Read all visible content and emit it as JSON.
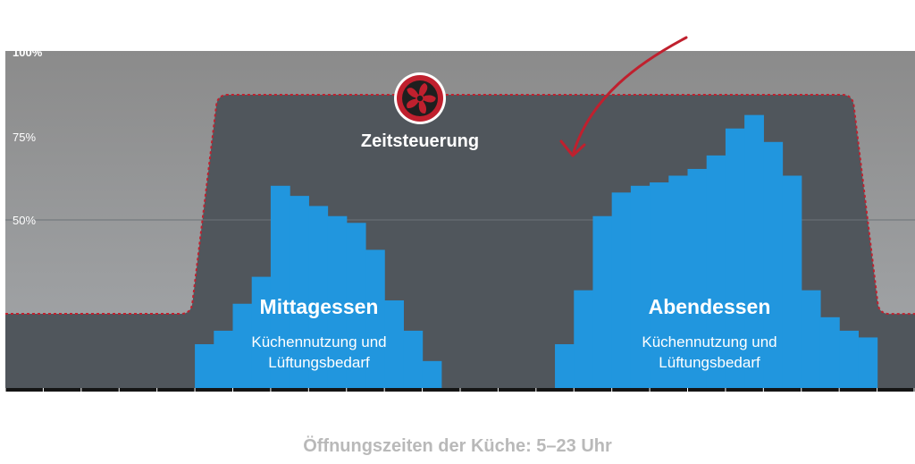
{
  "chart_data": {
    "type": "bar",
    "ylim": [
      0,
      100
    ],
    "yticks": [
      {
        "value": 50,
        "label": "50%"
      },
      {
        "value": 75,
        "label": "75%"
      },
      {
        "value": 100,
        "label": "100%"
      }
    ],
    "slots": 48,
    "series": [
      {
        "values": [
          0,
          0,
          0,
          0,
          0,
          0,
          0,
          0,
          0,
          0,
          13,
          17,
          25,
          33,
          60,
          57,
          54,
          51,
          49,
          41,
          26,
          17,
          8,
          0,
          0,
          0,
          0,
          0,
          0,
          13,
          29,
          51,
          58,
          60,
          61,
          63,
          65,
          69,
          77,
          81,
          73,
          63,
          29,
          21,
          17,
          15,
          0,
          0
        ]
      }
    ],
    "ventilation_profile": [
      {
        "x": 0,
        "y": 22
      },
      {
        "x": 9.8,
        "y": 22
      },
      {
        "x": 11.2,
        "y": 87
      },
      {
        "x": 44.7,
        "y": 87
      },
      {
        "x": 46.1,
        "y": 22
      },
      {
        "x": 48,
        "y": 22
      }
    ],
    "annotations": {
      "lunch_title": "Mittagessen",
      "lunch_sub_1": "Küchennutzung und",
      "lunch_sub_2": "Lüftungsbedarf",
      "dinner_title": "Abendessen",
      "dinner_sub_1": "Küchennutzung und",
      "dinner_sub_2": "Lüftungsbedarf",
      "schedule_label": "Zeitsteuerung",
      "fan_icon": "fan-icon",
      "arrow_icon": "curved-arrow-icon"
    },
    "caption": "Öffnungszeiten der Küche: 5–23 Uhr",
    "colors": {
      "background_top": "#8c8c8c",
      "background_bottom": "#a3a6a9",
      "zone": "#50565c",
      "bars": "#2196de",
      "accent": "#c0202e",
      "axis": "#151515"
    }
  }
}
